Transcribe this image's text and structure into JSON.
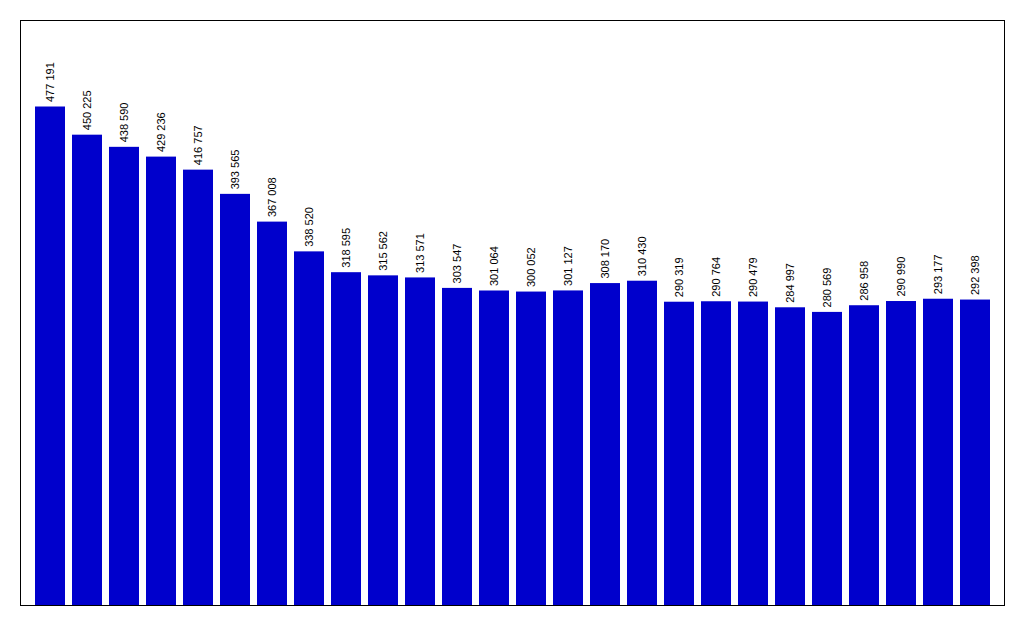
{
  "chart_data": {
    "type": "bar",
    "categories": [
      null,
      null,
      null,
      null,
      null,
      null,
      null,
      null,
      null,
      null,
      null,
      null,
      null,
      null,
      null,
      null,
      null,
      null,
      null,
      null,
      null,
      null,
      null,
      null,
      null,
      null
    ],
    "values": [
      477191,
      450225,
      438590,
      429236,
      416757,
      393565,
      367008,
      338520,
      318595,
      315562,
      313571,
      303547,
      301064,
      300052,
      301127,
      308170,
      310430,
      290319,
      290764,
      290479,
      284997,
      280569,
      286958,
      290990,
      293177,
      292398
    ],
    "value_labels": [
      "477 191",
      "450 225",
      "438 590",
      "429 236",
      "416 757",
      "393 565",
      "367 008",
      "338 520",
      "318 595",
      "315 562",
      "313 571",
      "303 547",
      "301 064",
      "300 052",
      "301 127",
      "308 170",
      "310 430",
      "290 319",
      "290 764",
      "290 479",
      "284 997",
      "280 569",
      "286 958",
      "290 990",
      "293 177",
      "292 398"
    ],
    "color": "#0000cc",
    "ylim": [
      0,
      560000
    ],
    "yticks": [],
    "data_labels": true,
    "tick_labels": false,
    "grid": false
  }
}
